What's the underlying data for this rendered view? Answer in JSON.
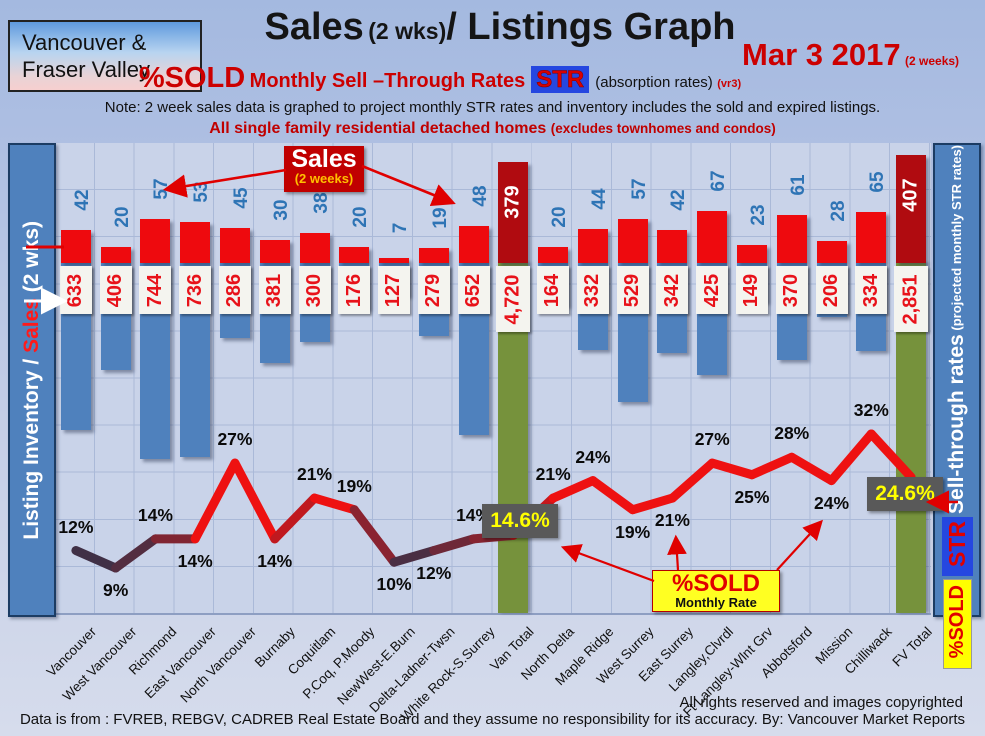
{
  "header": {
    "region_line1": "Vancouver &",
    "region_line2": "Fraser Valley",
    "title_main": "Sales",
    "title_paren": "(2 wks)",
    "title_rest": "/ Listings Graph",
    "date": "Mar 3 2017",
    "date_note": "(2 weeks)",
    "subtitle_pct": "%SOLD",
    "subtitle_text": "Monthly Sell –Through Rates",
    "str_badge": "STR",
    "absorption": "(absorption rates)",
    "version": "(vr3)",
    "note": "Note: 2 week sales data is graphed to project monthly STR rates and inventory includes the sold and expired listings.",
    "red_note_main": "All single family residential detached homes",
    "red_note_paren": "(excludes townhomes and condos)"
  },
  "left_axis": {
    "title_white": "Listing Inventory / ",
    "title_red": "Sales",
    "title_suffix": " (2  wks)"
  },
  "right_axis": {
    "title": "Sell-through rates",
    "subtitle": "  (projected monthly STR rates)",
    "str_label": "STR",
    "pctsold_label": "%SOLD"
  },
  "legend": {
    "sales_box_title": "Sales",
    "sales_box_sub": "(2 weeks)",
    "pctsold_box_title": "%SOLD",
    "pctsold_box_sub": "Monthly Rate"
  },
  "chart_data": {
    "type": "bar+line",
    "title": "Sales (2 wks)/ Listings Graph",
    "left_axis_label": "Listing Inventory / Sales (2 wks)",
    "right_axis_label": "Sell-through rates (projected monthly STR rates)",
    "categories": [
      "Vancouver",
      "West Vancouver",
      "Richmond",
      "East Vancouver",
      "North Vancouver",
      "Burnaby",
      "Coquitlam",
      "P.Coq, P.Moody",
      "NewWest-E.Burn",
      "Delta-Ladner-Twsn",
      "White Rock-S.Surrey",
      "Van Total",
      "North Delta",
      "Maple Ridge",
      "West Surrey",
      "East Surrey",
      "Langley,Clvrdl",
      "Ft Langley-Wlnt Grv",
      "Abbotsford",
      "Mission",
      "Chilliwack",
      "FV Total"
    ],
    "series": [
      {
        "name": "Sales (2 weeks)",
        "type": "bar",
        "values": [
          42,
          20,
          57,
          53,
          45,
          30,
          38,
          20,
          7,
          19,
          48,
          379,
          20,
          44,
          57,
          42,
          67,
          23,
          61,
          28,
          65,
          407
        ],
        "display": [
          "42",
          "20",
          "57",
          "53",
          "45",
          "30",
          "38",
          "20",
          "7",
          "19",
          "48",
          "379",
          "20",
          "44",
          "57",
          "42",
          "67",
          "23",
          "61",
          "28",
          "65",
          "407"
        ]
      },
      {
        "name": "Listing Inventory (incl. sold and expired)",
        "type": "bar",
        "values": [
          633,
          406,
          744,
          736,
          286,
          381,
          300,
          176,
          127,
          279,
          652,
          4720,
          164,
          332,
          529,
          342,
          425,
          149,
          370,
          206,
          334,
          2851
        ],
        "display": [
          "633",
          "406",
          "744",
          "736",
          "286",
          "381",
          "300",
          "176",
          "127",
          "279",
          "652",
          "4,720",
          "164",
          "332",
          "529",
          "342",
          "425",
          "149",
          "370",
          "206",
          "334",
          "2,851"
        ]
      },
      {
        "name": "%SOLD Monthly Rate (STR)",
        "type": "line",
        "values": [
          12,
          9,
          14,
          14,
          27,
          14,
          21,
          19,
          10,
          12,
          14,
          14.6,
          21,
          24,
          19,
          21,
          27,
          25,
          28,
          24,
          32,
          24.6
        ],
        "display": [
          "12%",
          "9%",
          "14%",
          "14%",
          "27%",
          "14%",
          "21%",
          "19%",
          "10%",
          "12%",
          "14%",
          "14.6%",
          "21%",
          "24%",
          "19%",
          "21%",
          "27%",
          "25%",
          "28%",
          "24%",
          "32%",
          "24.6%"
        ]
      }
    ],
    "total_columns": [
      11,
      21
    ],
    "pct_label_pos": [
      "above",
      "below",
      "above",
      "below",
      "above",
      "below",
      "above",
      "above",
      "below",
      "below",
      "above",
      "box",
      "above",
      "above",
      "below",
      "below",
      "above",
      "below",
      "above",
      "below",
      "above",
      "box"
    ],
    "colors": {
      "sales_bar": "#ee0a0e",
      "total_sales_bar": "#b00b10",
      "inventory_bar": "#4f81bd",
      "total_inventory_bar": "#76923c",
      "line_high": "#ee1111",
      "line_low": "#25354e",
      "inventory_text": "#e8121a",
      "sales_text": "#2e74b5",
      "highlight_box_bg": "#595959",
      "highlight_box_text": "#ffff00"
    },
    "legend_position": "annotations-on-chart",
    "grid": true
  },
  "footer": {
    "rights": "All rights reserved and  images copyrighted",
    "source": "Data is from : FVREB, REBGV, CADREB Real Estate Board and they assume no responsibility for its accuracy. By: Vancouver Market Reports"
  }
}
